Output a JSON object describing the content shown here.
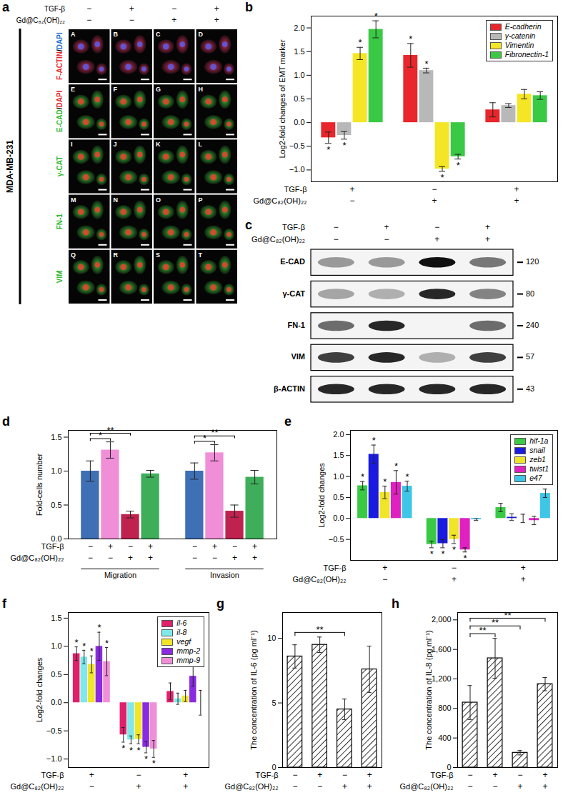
{
  "figure_panels": {
    "a": {
      "panel": "a",
      "cell_line": "MDA-MB-231",
      "conditions": [
        {
          "label": "TGF-β",
          "signs": [
            "−",
            "+",
            "−",
            "+"
          ]
        },
        {
          "label": "Gd@C₈₂(OH)₂₂",
          "signs": [
            "−",
            "−",
            "+",
            "+"
          ]
        }
      ],
      "rows": [
        {
          "label": [
            {
              "text": "F-ACTIN",
              "color": "#e8262b"
            },
            {
              "text": "/",
              "color": "#000000"
            },
            {
              "text": "DAPI",
              "color": "#2a6fd6"
            }
          ],
          "image_color": "#c8325a",
          "nucleus_color": "#5a5ae8",
          "panels": [
            "A",
            "B",
            "C",
            "D"
          ]
        },
        {
          "label": [
            {
              "text": "E-CAD",
              "color": "#2fb82f"
            },
            {
              "text": "/",
              "color": "#000000"
            },
            {
              "text": "DAPI",
              "color": "#e8262b"
            }
          ],
          "image_color": "#3fbf3f",
          "nucleus_color": "#e8402b",
          "panels": [
            "E",
            "F",
            "G",
            "H"
          ]
        },
        {
          "label": [
            {
              "text": "γ-CAT",
              "color": "#2fb82f"
            }
          ],
          "image_color": "#3fbf3f",
          "nucleus_color": "#e8402b",
          "panels": [
            "I",
            "J",
            "K",
            "L"
          ]
        },
        {
          "label": [
            {
              "text": "FN-1",
              "color": "#2fb82f"
            }
          ],
          "image_color": "#3fbf3f",
          "nucleus_color": "#e8402b",
          "panels": [
            "M",
            "N",
            "O",
            "P"
          ]
        },
        {
          "label": [
            {
              "text": "VIM",
              "color": "#2fb82f"
            }
          ],
          "image_color": "#3fbf3f",
          "nucleus_color": "#e8402b",
          "panels": [
            "Q",
            "R",
            "S",
            "T"
          ]
        }
      ]
    },
    "c": {
      "panel": "c",
      "conditions": [
        {
          "label": "TGF-β",
          "signs": [
            "−",
            "+",
            "−",
            "+"
          ]
        },
        {
          "label": "Gd@C₈₂(OH)₂₂",
          "signs": [
            "−",
            "−",
            "+",
            "+"
          ]
        }
      ],
      "bands": [
        {
          "name": "E-CAD",
          "mw": 120,
          "intensity": [
            0.4,
            0.4,
            1.0,
            0.55
          ]
        },
        {
          "name": "γ-CAT",
          "mw": 80,
          "intensity": [
            0.35,
            0.3,
            0.9,
            0.5
          ]
        },
        {
          "name": "FN-1",
          "mw": 240,
          "intensity": [
            0.6,
            0.9,
            0.0,
            0.6
          ]
        },
        {
          "name": "VIM",
          "mw": 57,
          "intensity": [
            0.8,
            0.9,
            0.3,
            0.8
          ]
        },
        {
          "name": "β-ACTIN",
          "mw": 43,
          "intensity": [
            0.9,
            0.9,
            0.9,
            0.9
          ]
        }
      ]
    }
  },
  "chart_data": [
    {
      "panel": "b",
      "type": "bar",
      "ylabel": "Log2-fold changes of EMT marker",
      "ylim": [
        -1.25,
        2.25
      ],
      "yticks": [
        {
          "value": -1,
          "label": "−1.0"
        },
        {
          "value": -0.5,
          "label": "−0.5"
        },
        {
          "value": 0,
          "label": "0.0"
        },
        {
          "value": 0.5,
          "label": "0.5"
        },
        {
          "value": 1,
          "label": "1.0"
        },
        {
          "value": 1.5,
          "label": "1.5"
        },
        {
          "value": 2,
          "label": "2.0"
        }
      ],
      "categories": [
        null,
        null,
        null
      ],
      "conditions": [
        {
          "label": "TGF-β",
          "signs": [
            "+",
            "−",
            "+"
          ]
        },
        {
          "label": "Gd@C₈₂(OH)₂₂",
          "signs": [
            "−",
            "+",
            "+"
          ]
        }
      ],
      "legend": "top-right",
      "series": [
        {
          "name": "E-cadherin",
          "color": "#e8262b",
          "values": [
            -0.32,
            1.42,
            0.27
          ],
          "errors": [
            0.12,
            0.25,
            0.15
          ],
          "significance": [
            "*",
            "*",
            null
          ]
        },
        {
          "name": "γ-catenin",
          "color": "#b8b8b8",
          "values": [
            -0.27,
            1.1,
            0.36
          ],
          "errors": [
            0.08,
            0.05,
            0.04
          ],
          "significance": [
            "*",
            "*",
            null
          ]
        },
        {
          "name": "Vimentin",
          "color": "#f5e625",
          "values": [
            1.46,
            -0.98,
            0.6
          ],
          "errors": [
            0.13,
            0.05,
            0.1
          ],
          "significance": [
            "*",
            "*",
            null
          ]
        },
        {
          "name": "Fibronectin-1",
          "color": "#3ac944",
          "values": [
            1.97,
            -0.72,
            0.57
          ],
          "errors": [
            0.18,
            0.05,
            0.08
          ],
          "significance": [
            "*",
            "*",
            null
          ]
        }
      ]
    },
    {
      "panel": "d",
      "type": "bar",
      "ylabel": "Fold-cells number",
      "ylim": [
        0,
        1.6
      ],
      "yticks": [
        {
          "value": 0,
          "label": "0.0"
        },
        0.5,
        {
          "value": 1,
          "label": "1.0"
        },
        1.5
      ],
      "categories": [
        "Migration",
        "Invasion"
      ],
      "conditions": [
        {
          "label": "TGF-β",
          "signs": [
            "−",
            "+",
            "−",
            "+"
          ]
        },
        {
          "label": "Gd@C₈₂(OH)₂₂",
          "signs": [
            "−",
            "−",
            "+",
            "+"
          ]
        }
      ],
      "series": [
        {
          "color": "#3f6fb5",
          "values": [
            1.0,
            1.0
          ],
          "errors": [
            0.15,
            0.12
          ]
        },
        {
          "color": "#f08fd8",
          "values": [
            1.31,
            1.27
          ],
          "errors": [
            0.12,
            0.12
          ]
        },
        {
          "color": "#c0224f",
          "values": [
            0.36,
            0.41
          ],
          "errors": [
            0.05,
            0.09
          ]
        },
        {
          "color": "#3fae5a",
          "values": [
            0.96,
            0.91
          ],
          "errors": [
            0.05,
            0.1
          ]
        }
      ],
      "brackets": [
        {
          "category": "Migration",
          "from": 0,
          "to": 1,
          "label": "*"
        },
        {
          "category": "Migration",
          "from": 0,
          "to": 2,
          "label": "**"
        },
        {
          "category": "Invasion",
          "from": 0,
          "to": 1,
          "label": "*"
        },
        {
          "category": "Invasion",
          "from": 0,
          "to": 2,
          "label": "**"
        }
      ]
    },
    {
      "panel": "e",
      "type": "bar",
      "ylabel": "Log2-fold changes",
      "ylim": [
        -1.0,
        2.1
      ],
      "yticks": [
        {
          "value": -0.5,
          "label": "−0.5"
        },
        {
          "value": 0,
          "label": "0.0"
        },
        0.5,
        {
          "value": 1,
          "label": "1.0"
        },
        1.5,
        {
          "value": 2,
          "label": "2.0"
        }
      ],
      "categories": [
        null,
        null,
        null
      ],
      "conditions": [
        {
          "label": "TGF-β",
          "signs": [
            "+",
            "−",
            "+"
          ]
        },
        {
          "label": "Gd@C₈₂(OH)₂₂",
          "signs": [
            "−",
            "+",
            "+"
          ]
        }
      ],
      "legend": "top-right",
      "series": [
        {
          "name": "hif-1a",
          "color": "#3ac944",
          "values": [
            0.78,
            -0.62,
            0.26
          ],
          "errors": [
            0.1,
            0.08,
            0.1
          ],
          "significance": [
            "*",
            "*",
            null
          ]
        },
        {
          "name": "snail",
          "color": "#1a1ae0",
          "values": [
            1.53,
            -0.6,
            0.03
          ],
          "errors": [
            0.22,
            0.1,
            0.08
          ],
          "significance": [
            "*",
            "*",
            null
          ]
        },
        {
          "name": "zeb1",
          "color": "#f0e526",
          "values": [
            0.62,
            -0.5,
            0.0
          ],
          "errors": [
            0.15,
            0.1,
            0.1
          ],
          "significance": [
            "*",
            "*",
            null
          ]
        },
        {
          "name": "twist1",
          "color": "#e020c0",
          "values": [
            0.86,
            -0.75,
            -0.05
          ],
          "errors": [
            0.28,
            0.05,
            0.1
          ],
          "significance": [
            "*",
            "*",
            null
          ]
        },
        {
          "name": "e47",
          "color": "#3ec6e6",
          "values": [
            0.77,
            -0.03,
            0.6
          ],
          "errors": [
            0.12,
            0.02,
            0.1
          ],
          "significance": [
            "*",
            null,
            null
          ]
        }
      ]
    },
    {
      "panel": "f",
      "type": "bar",
      "ylabel": "Log2-fold changes",
      "ylim": [
        -1.15,
        1.6
      ],
      "yticks": [
        {
          "value": -1,
          "label": "−1.0"
        },
        {
          "value": -0.5,
          "label": "−0.5"
        },
        {
          "value": 0,
          "label": "0.0"
        },
        0.5,
        {
          "value": 1,
          "label": "1.0"
        },
        1.5
      ],
      "categories": [
        null,
        null,
        null
      ],
      "conditions": [
        {
          "label": "TGF-β",
          "signs": [
            "+",
            "−",
            "+"
          ]
        },
        {
          "label": "Gd@C₈₂(OH)₂₂",
          "signs": [
            "−",
            "+",
            "+"
          ]
        }
      ],
      "legend": "top-right",
      "series": [
        {
          "name": "il-6",
          "color": "#e0206a",
          "values": [
            0.87,
            -0.57,
            0.2
          ],
          "errors": [
            0.12,
            0.13,
            0.15
          ],
          "significance": [
            "*",
            "*",
            null
          ]
        },
        {
          "name": "il-8",
          "color": "#7fe8e8",
          "values": [
            0.81,
            -0.66,
            0.07
          ],
          "errors": [
            0.12,
            0.07,
            0.1
          ],
          "significance": [
            "*",
            "*",
            null
          ]
        },
        {
          "name": "vegf",
          "color": "#f0e526",
          "values": [
            0.68,
            -0.65,
            0.12
          ],
          "errors": [
            0.15,
            0.08,
            0.1
          ],
          "significance": [
            "*",
            "*",
            null
          ]
        },
        {
          "name": "mmp-2",
          "color": "#8a2be2",
          "values": [
            1.0,
            -0.79,
            0.47
          ],
          "errors": [
            0.25,
            0.1,
            0.18
          ],
          "significance": [
            "*",
            "*",
            null
          ]
        },
        {
          "name": "mmp-9",
          "color": "#f08fd8",
          "values": [
            0.73,
            -0.82,
            0.0
          ],
          "errors": [
            0.25,
            0.15,
            0.22
          ],
          "significance": [
            "*",
            "*",
            null
          ]
        }
      ]
    },
    {
      "panel": "g",
      "type": "bar",
      "ylabel": "The concentration of IL-6 (pg ml⁻¹)",
      "ylim": [
        0,
        12
      ],
      "yticks": [
        0,
        5,
        10
      ],
      "categories": [
        null,
        null,
        null,
        null
      ],
      "conditions": [
        {
          "label": "TGF-β",
          "signs": [
            "−",
            "+",
            "−",
            "+"
          ]
        },
        {
          "label": "Gd@C₈₂(OH)₂₂",
          "signs": [
            "−",
            "−",
            "+",
            "+"
          ]
        }
      ],
      "color": "#000000",
      "values": [
        8.6,
        9.5,
        4.5,
        7.6
      ],
      "errors": [
        0.9,
        0.6,
        0.8,
        1.8
      ],
      "brackets": [
        {
          "from": 0,
          "to": 2,
          "label": "**"
        }
      ]
    },
    {
      "panel": "h",
      "type": "bar",
      "ylabel": "The concentration of IL-8 (pg ml⁻¹)",
      "ylim": [
        0,
        2100
      ],
      "yticks": [
        0,
        400,
        800,
        {
          "value": 1200,
          "label": "1,200"
        },
        {
          "value": 1600,
          "label": "1,600"
        },
        {
          "value": 2000,
          "label": "2,000"
        }
      ],
      "categories": [
        null,
        null,
        null,
        null
      ],
      "conditions": [
        {
          "label": "TGF-β",
          "signs": [
            "−",
            "+",
            "−",
            "+"
          ]
        },
        {
          "label": "Gd@C₈₂(OH)₂₂",
          "signs": [
            "−",
            "−",
            "+",
            "+"
          ]
        }
      ],
      "color": "#000000",
      "values": [
        880,
        1480,
        200,
        1130
      ],
      "errors": [
        230,
        270,
        30,
        90
      ],
      "brackets": [
        {
          "from": 0,
          "to": 1,
          "label": "**"
        },
        {
          "from": 0,
          "to": 2,
          "label": "**"
        },
        {
          "from": 0,
          "to": 3,
          "label": "**"
        }
      ]
    }
  ]
}
